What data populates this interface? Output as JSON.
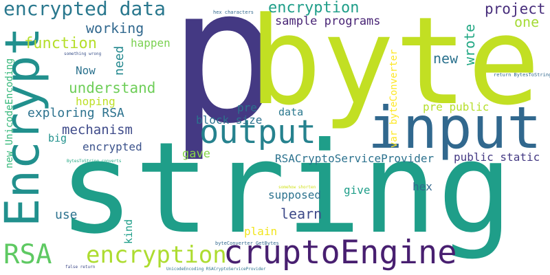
{
  "words": [
    {
      "text": "p",
      "color": "#443983"
    },
    {
      "text": "byte",
      "color": "#c2df23"
    },
    {
      "text": "string",
      "color": "#1f9e89"
    },
    {
      "text": "input",
      "color": "#31688e"
    },
    {
      "text": "output",
      "color": "#26828e"
    },
    {
      "text": "Encrypt",
      "color": "#21908d"
    },
    {
      "text": "cruptoEngine",
      "color": "#481f70"
    },
    {
      "text": "encryption",
      "color": "#addc30"
    },
    {
      "text": "RSA",
      "color": "#5ec962"
    },
    {
      "text": "encrypted data",
      "color": "#2a788e"
    },
    {
      "text": "encryption",
      "color": "#1f9e89"
    },
    {
      "text": "project",
      "color": "#472d7b"
    },
    {
      "text": "one",
      "color": "#a5db36"
    },
    {
      "text": "wrote",
      "color": "#22a884"
    },
    {
      "text": "new",
      "color": "#2c728e"
    },
    {
      "text": "working",
      "color": "#31688e"
    },
    {
      "text": "sample programs",
      "color": "#482475"
    },
    {
      "text": "function",
      "color": "#b5de2b"
    },
    {
      "text": "need",
      "color": "#23888e"
    },
    {
      "text": "happen",
      "color": "#7ad151"
    },
    {
      "text": "Now",
      "color": "#2c728e"
    },
    {
      "text": "understand",
      "color": "#6ece58"
    },
    {
      "text": "hoping",
      "color": "#bddf26"
    },
    {
      "text": "exploring RSA",
      "color": "#2c728e"
    },
    {
      "text": "mechanism",
      "color": "#3e4a89"
    },
    {
      "text": "big",
      "color": "#21918c"
    },
    {
      "text": "encrypted",
      "color": "#3b528b"
    },
    {
      "text": "new UnicodeEncoding",
      "color": "#35b779"
    },
    {
      "text": "pre",
      "color": "#2c728e"
    },
    {
      "text": "block size",
      "color": "#2c728e"
    },
    {
      "text": "data",
      "color": "#2a788e"
    },
    {
      "text": "pre public",
      "color": "#b5de2b"
    },
    {
      "text": "var byteConverter",
      "color": "#fde725"
    },
    {
      "text": "gave",
      "color": "#86d549"
    },
    {
      "text": "RSACryptoServiceProvider",
      "color": "#2c728e"
    },
    {
      "text": "public static",
      "color": "#443983"
    },
    {
      "text": "give",
      "color": "#1f9e89"
    },
    {
      "text": "hex",
      "color": "#31688e"
    },
    {
      "text": "supposed",
      "color": "#2c728e"
    },
    {
      "text": "learn",
      "color": "#3e4a89"
    },
    {
      "text": "use",
      "color": "#2c728e"
    },
    {
      "text": "kind",
      "color": "#1f9e89"
    },
    {
      "text": "plain",
      "color": "#f1e51d"
    },
    {
      "text": "hex characters",
      "color": "#31688e"
    },
    {
      "text": "something wrong",
      "color": "#3b528b"
    },
    {
      "text": "return BytesToString",
      "color": "#31688e"
    },
    {
      "text": "BytesToString converts",
      "color": "#22a884"
    },
    {
      "text": "somehow shorten",
      "color": "#d0e11c"
    },
    {
      "text": "byteConverter GetBytes",
      "color": "#31688e"
    },
    {
      "text": "false return",
      "color": "#3e4a89"
    },
    {
      "text": "UnicodeEncoding RSACryptoServiceProvider",
      "color": "#2c728e"
    }
  ]
}
